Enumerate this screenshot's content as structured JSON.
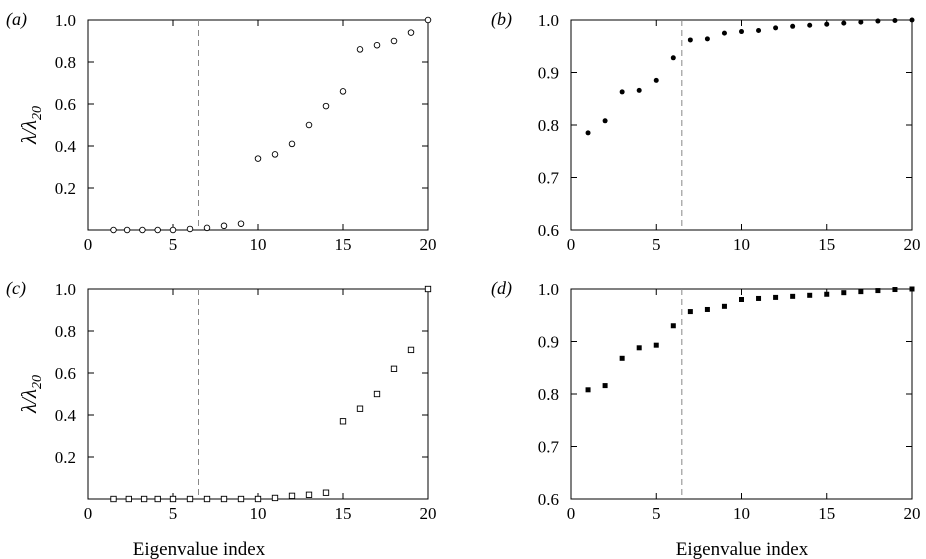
{
  "chart_data": [
    {
      "panel": "(a)",
      "type": "scatter",
      "marker": "circle-open",
      "ylabel": "λ/λ20",
      "xlim": [
        0,
        20
      ],
      "ylim": [
        0,
        1
      ],
      "xticks": [
        0,
        5,
        10,
        15,
        20
      ],
      "yticks": [
        0.2,
        0.4,
        0.6,
        0.8,
        1.0
      ],
      "ytick_labels": [
        "0.2",
        "0.4",
        "0.6",
        "0.8",
        "1.0"
      ],
      "divider_x": 6.5,
      "x": [
        1.5,
        2.3,
        3.2,
        4.1,
        5.0,
        6.0,
        7.0,
        8.0,
        9.0,
        10.0,
        11.0,
        12.0,
        13.0,
        14.0,
        15.0,
        16.0,
        17.0,
        18.0,
        19.0,
        20.0
      ],
      "y": [
        0.0,
        0.0,
        0.0,
        0.0,
        0.0,
        0.005,
        0.01,
        0.02,
        0.03,
        0.34,
        0.36,
        0.41,
        0.5,
        0.59,
        0.66,
        0.86,
        0.88,
        0.9,
        0.94,
        1.0
      ]
    },
    {
      "panel": "(b)",
      "type": "scatter",
      "marker": "circle-filled",
      "ylabel": "",
      "xlim": [
        0,
        20
      ],
      "ylim": [
        0.6,
        1.0
      ],
      "xticks": [
        0,
        5,
        10,
        15,
        20
      ],
      "yticks": [
        0.6,
        0.7,
        0.8,
        0.9,
        1.0
      ],
      "ytick_labels": [
        "0.6",
        "0.7",
        "0.8",
        "0.9",
        "1.0"
      ],
      "divider_x": 6.5,
      "x": [
        1,
        2,
        3,
        4,
        5,
        6,
        7,
        8,
        9,
        10,
        11,
        12,
        13,
        14,
        15,
        16,
        17,
        18,
        19,
        20
      ],
      "y": [
        0.785,
        0.808,
        0.863,
        0.866,
        0.885,
        0.928,
        0.962,
        0.964,
        0.975,
        0.978,
        0.98,
        0.985,
        0.988,
        0.99,
        0.992,
        0.994,
        0.996,
        0.998,
        0.999,
        1.0
      ]
    },
    {
      "panel": "(c)",
      "type": "scatter",
      "marker": "square-open",
      "ylabel": "λ/λ20",
      "xlim": [
        0,
        20
      ],
      "ylim": [
        0,
        1
      ],
      "xticks": [
        0,
        5,
        10,
        15,
        20
      ],
      "yticks": [
        0.2,
        0.4,
        0.6,
        0.8,
        1.0
      ],
      "ytick_labels": [
        "0.2",
        "0.4",
        "0.6",
        "0.8",
        "1.0"
      ],
      "divider_x": 6.5,
      "x": [
        1.5,
        2.4,
        3.3,
        4.1,
        5.0,
        6.0,
        7.0,
        8.0,
        9.0,
        10.0,
        11.0,
        12.0,
        13.0,
        14.0,
        15.0,
        16.0,
        17.0,
        18.0,
        19.0,
        20.0
      ],
      "y": [
        0.0,
        0.0,
        0.0,
        0.0,
        0.0,
        0.0,
        0.0,
        0.0,
        0.0,
        0.0,
        0.005,
        0.015,
        0.02,
        0.03,
        0.37,
        0.43,
        0.5,
        0.62,
        0.71,
        1.0
      ]
    },
    {
      "panel": "(d)",
      "type": "scatter",
      "marker": "square-filled",
      "ylabel": "",
      "xlim": [
        0,
        20
      ],
      "ylim": [
        0.6,
        1.0
      ],
      "xticks": [
        0,
        5,
        10,
        15,
        20
      ],
      "yticks": [
        0.6,
        0.7,
        0.8,
        0.9,
        1.0
      ],
      "ytick_labels": [
        "0.6",
        "0.7",
        "0.8",
        "0.9",
        "1.0"
      ],
      "divider_x": 6.5,
      "x": [
        1,
        2,
        3,
        4,
        5,
        6,
        7,
        8,
        9,
        10,
        11,
        12,
        13,
        14,
        15,
        16,
        17,
        18,
        19,
        20
      ],
      "y": [
        0.808,
        0.816,
        0.868,
        0.888,
        0.893,
        0.93,
        0.957,
        0.961,
        0.967,
        0.98,
        0.982,
        0.984,
        0.986,
        0.988,
        0.99,
        0.993,
        0.995,
        0.997,
        0.999,
        1.0
      ]
    }
  ],
  "xlabel": "Eigenvalue index",
  "colors": {
    "axis": "#000000",
    "divider": "#888888",
    "marker": "#000000"
  }
}
